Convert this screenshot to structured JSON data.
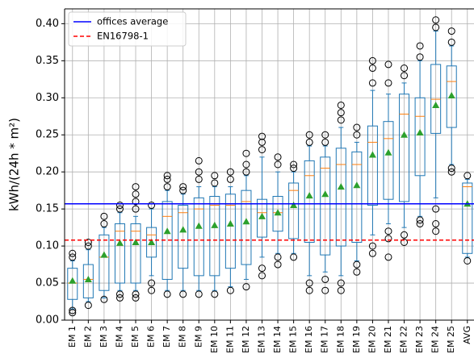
{
  "chart_data": {
    "type": "box",
    "ylabel": "kWh/(24h * m²)",
    "categories": [
      "EM 1",
      "EM 2",
      "EM 3",
      "EM 4",
      "EM 5",
      "EM 6",
      "EM 7",
      "EM 8",
      "EM 9",
      "EM 10",
      "EM 11",
      "EM 12",
      "EM 13",
      "EM 14",
      "EM 15",
      "EM 16",
      "EM 17",
      "EM 18",
      "EM 19",
      "EM 20",
      "EM 21",
      "EM 22",
      "EM 23",
      "EM 24",
      "EM 25",
      "AVG"
    ],
    "boxes": [
      {
        "whislo": 0.015,
        "q1": 0.028,
        "med": 0.05,
        "q3": 0.07,
        "whishi": 0.08,
        "mean": 0.053,
        "fliers": [
          0.01,
          0.013,
          0.085,
          0.09
        ]
      },
      {
        "whislo": 0.025,
        "q1": 0.03,
        "med": 0.055,
        "q3": 0.075,
        "whishi": 0.095,
        "mean": 0.055,
        "fliers": [
          0.02,
          0.1,
          0.105
        ]
      },
      {
        "whislo": 0.03,
        "q1": 0.04,
        "med": 0.085,
        "q3": 0.115,
        "whishi": 0.125,
        "mean": 0.088,
        "fliers": [
          0.028,
          0.13,
          0.14
        ]
      },
      {
        "whislo": 0.04,
        "q1": 0.05,
        "med": 0.12,
        "q3": 0.13,
        "whishi": 0.145,
        "mean": 0.104,
        "fliers": [
          0.03,
          0.035,
          0.15,
          0.155
        ]
      },
      {
        "whislo": 0.04,
        "q1": 0.05,
        "med": 0.12,
        "q3": 0.13,
        "whishi": 0.14,
        "mean": 0.105,
        "fliers": [
          0.03,
          0.035,
          0.15,
          0.16,
          0.17,
          0.18
        ]
      },
      {
        "whislo": 0.06,
        "q1": 0.085,
        "med": 0.115,
        "q3": 0.125,
        "whishi": 0.15,
        "mean": 0.105,
        "fliers": [
          0.04,
          0.05,
          0.155
        ]
      },
      {
        "whislo": 0.04,
        "q1": 0.055,
        "med": 0.14,
        "q3": 0.16,
        "whishi": 0.175,
        "mean": 0.12,
        "fliers": [
          0.035,
          0.18,
          0.19,
          0.195
        ]
      },
      {
        "whislo": 0.04,
        "q1": 0.07,
        "med": 0.145,
        "q3": 0.155,
        "whishi": 0.17,
        "mean": 0.122,
        "fliers": [
          0.035,
          0.175,
          0.18
        ]
      },
      {
        "whislo": 0.04,
        "q1": 0.06,
        "med": 0.15,
        "q3": 0.165,
        "whishi": 0.18,
        "mean": 0.127,
        "fliers": [
          0.035,
          0.19,
          0.2,
          0.215
        ]
      },
      {
        "whislo": 0.04,
        "q1": 0.06,
        "med": 0.155,
        "q3": 0.167,
        "whishi": 0.18,
        "mean": 0.128,
        "fliers": [
          0.035,
          0.185,
          0.195
        ]
      },
      {
        "whislo": 0.045,
        "q1": 0.07,
        "med": 0.155,
        "q3": 0.17,
        "whishi": 0.18,
        "mean": 0.13,
        "fliers": [
          0.04,
          0.19,
          0.2
        ]
      },
      {
        "whislo": 0.055,
        "q1": 0.075,
        "med": 0.16,
        "q3": 0.175,
        "whishi": 0.195,
        "mean": 0.133,
        "fliers": [
          0.045,
          0.2,
          0.21,
          0.225
        ]
      },
      {
        "whislo": 0.085,
        "q1": 0.112,
        "med": 0.145,
        "q3": 0.163,
        "whishi": 0.22,
        "mean": 0.14,
        "fliers": [
          0.06,
          0.07,
          0.23,
          0.24,
          0.248
        ]
      },
      {
        "whislo": 0.09,
        "q1": 0.12,
        "med": 0.145,
        "q3": 0.167,
        "whishi": 0.2,
        "mean": 0.145,
        "fliers": [
          0.075,
          0.085,
          0.21,
          0.22
        ]
      },
      {
        "whislo": 0.09,
        "q1": 0.11,
        "med": 0.175,
        "q3": 0.185,
        "whishi": 0.2,
        "mean": 0.155,
        "fliers": [
          0.085,
          0.205,
          0.21
        ]
      },
      {
        "whislo": 0.06,
        "q1": 0.105,
        "med": 0.195,
        "q3": 0.215,
        "whishi": 0.235,
        "mean": 0.168,
        "fliers": [
          0.04,
          0.05,
          0.24,
          0.25
        ]
      },
      {
        "whislo": 0.065,
        "q1": 0.088,
        "med": 0.205,
        "q3": 0.22,
        "whishi": 0.235,
        "mean": 0.17,
        "fliers": [
          0.04,
          0.055,
          0.24,
          0.25
        ]
      },
      {
        "whislo": 0.06,
        "q1": 0.1,
        "med": 0.21,
        "q3": 0.232,
        "whishi": 0.26,
        "mean": 0.18,
        "fliers": [
          0.04,
          0.05,
          0.27,
          0.28,
          0.29
        ]
      },
      {
        "whislo": 0.08,
        "q1": 0.105,
        "med": 0.21,
        "q3": 0.227,
        "whishi": 0.24,
        "mean": 0.182,
        "fliers": [
          0.065,
          0.075,
          0.25,
          0.26
        ]
      },
      {
        "whislo": 0.115,
        "q1": 0.155,
        "med": 0.24,
        "q3": 0.262,
        "whishi": 0.31,
        "mean": 0.223,
        "fliers": [
          0.09,
          0.1,
          0.32,
          0.34,
          0.35
        ]
      },
      {
        "whislo": 0.13,
        "q1": 0.163,
        "med": 0.245,
        "q3": 0.268,
        "whishi": 0.305,
        "mean": 0.226,
        "fliers": [
          0.085,
          0.11,
          0.12,
          0.32,
          0.345
        ]
      },
      {
        "whislo": 0.125,
        "q1": 0.16,
        "med": 0.278,
        "q3": 0.305,
        "whishi": 0.32,
        "mean": 0.25,
        "fliers": [
          0.105,
          0.115,
          0.33,
          0.34
        ]
      },
      {
        "whislo": 0.14,
        "q1": 0.195,
        "med": 0.275,
        "q3": 0.3,
        "whishi": 0.35,
        "mean": 0.253,
        "fliers": [
          0.13,
          0.135,
          0.355,
          0.37
        ]
      },
      {
        "whislo": 0.165,
        "q1": 0.252,
        "med": 0.298,
        "q3": 0.345,
        "whishi": 0.39,
        "mean": 0.29,
        "fliers": [
          0.12,
          0.13,
          0.15,
          0.395,
          0.405
        ]
      },
      {
        "whislo": 0.21,
        "q1": 0.26,
        "med": 0.322,
        "q3": 0.343,
        "whishi": 0.37,
        "mean": 0.303,
        "fliers": [
          0.2,
          0.205,
          0.375,
          0.39
        ]
      },
      {
        "whislo": 0.085,
        "q1": 0.09,
        "med": 0.18,
        "q3": 0.185,
        "whishi": 0.19,
        "mean": 0.157,
        "fliers": [
          0.08,
          0.195
        ]
      }
    ],
    "box_color": "#1f77b4",
    "median_color": "#ff7f0e",
    "mean_color": "#2ca02c",
    "flier_color": "#000000",
    "lines": [
      {
        "name": "offices average",
        "color": "#0000ff",
        "style": "solid",
        "value": 0.157
      },
      {
        "name": "EN16798-1",
        "color": "#ff0000",
        "style": "dashed",
        "value": 0.108
      }
    ],
    "ylim": [
      0,
      0.42
    ],
    "yticks": [
      {
        "value": 0,
        "label": "0.00"
      },
      0.05,
      {
        "value": 0.1,
        "label": "0.10"
      },
      0.15,
      {
        "value": 0.2,
        "label": "0.20"
      },
      0.25,
      {
        "value": 0.3,
        "label": "0.30"
      },
      0.35,
      {
        "value": 0.4,
        "label": "0.40"
      }
    ],
    "grid": true,
    "legend": "upper left"
  }
}
